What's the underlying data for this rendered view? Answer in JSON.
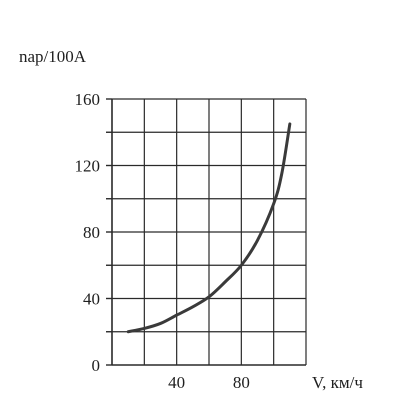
{
  "chart_data": {
    "type": "line",
    "title": "",
    "xlabel": "V, км/ч",
    "ylabel": "nap/100A",
    "xlim": [
      0,
      120
    ],
    "ylim": [
      0,
      160
    ],
    "grid": true,
    "x_tick_labels": [
      "40",
      "80"
    ],
    "y_tick_labels": [
      "0",
      "40",
      "80",
      "120",
      "160"
    ],
    "series": [
      {
        "x": [
          10,
          20,
          30,
          40,
          50,
          60,
          70,
          80,
          90,
          100,
          105,
          110
        ],
        "y": [
          20,
          22,
          25,
          30,
          35,
          41,
          50,
          60,
          75,
          97,
          115,
          145
        ]
      }
    ],
    "colors": {
      "line": "#3a3a3a",
      "grid": "#2a2a2a",
      "text": "#1f1f1f"
    }
  }
}
